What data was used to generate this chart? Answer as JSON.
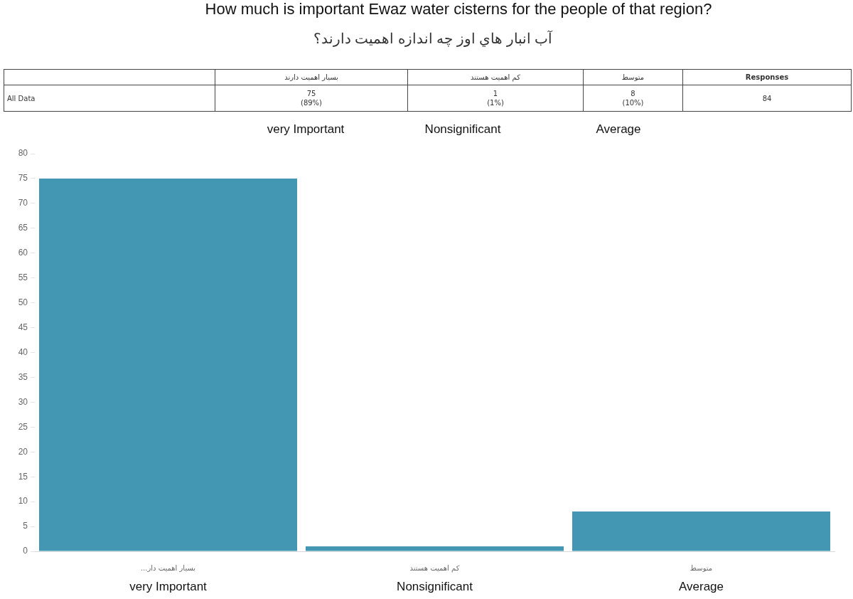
{
  "chart_data": {
    "type": "bar",
    "title": "How much is important Ewaz water cisterns for the people of that region?",
    "subtitle": "آب انبار هاي اوز چه اندازه اهمیت دارند؟",
    "categories": [
      "بسیار اهمیت دار...",
      "کم اهمیت هستند",
      "متوسط"
    ],
    "values": [
      75,
      1,
      8
    ],
    "color": "#4497b3",
    "ylim": [
      0,
      80
    ],
    "yticks": [
      0,
      5,
      10,
      15,
      20,
      25,
      30,
      35,
      40,
      45,
      50,
      55,
      60,
      65,
      70,
      75,
      80
    ],
    "annotations": [
      "بسیار اهمیت دارند",
      "کم اهمیت هستند",
      "متوسط",
      "Responses",
      "All Data",
      "75\n(89%)",
      "1\n(1%)",
      "8\n(10%)",
      "84",
      "very Important",
      "Nonsignificant",
      "Average",
      "very Important",
      "Nonsignificant",
      "Average"
    ]
  }
}
